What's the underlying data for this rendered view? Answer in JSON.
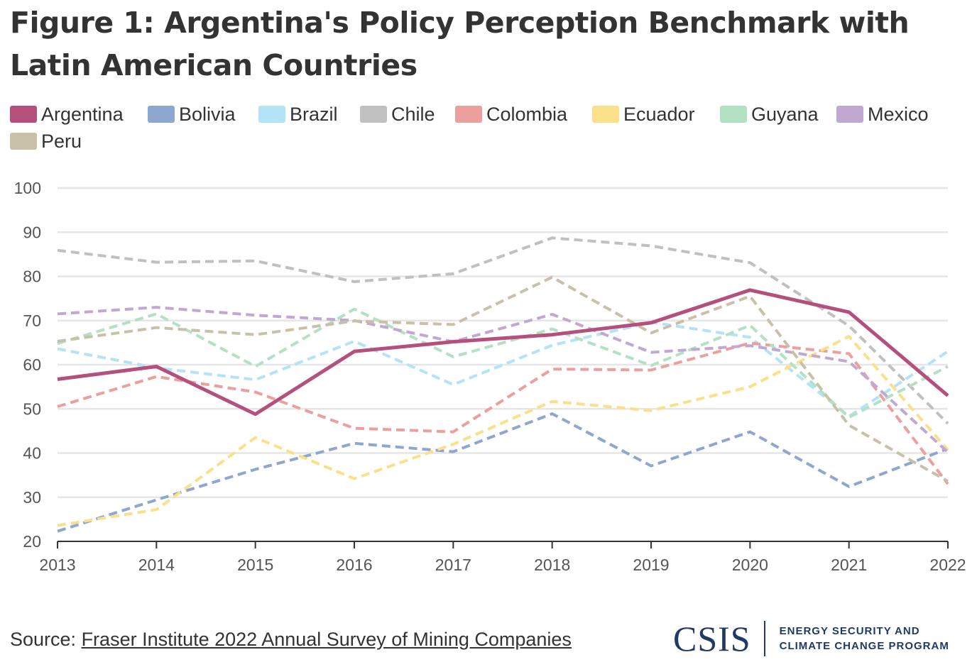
{
  "title": "Figure 1: Argentina's Policy Perception Benchmark with Latin American Countries",
  "source": {
    "label": "Source: ",
    "link_text": "Fraser Institute 2022 Annual Survey of Mining Companies"
  },
  "logo": {
    "mark": "CSIS",
    "line1": "ENERGY SECURITY AND",
    "line2": "CLIMATE CHANGE PROGRAM"
  },
  "chart_data": {
    "type": "line",
    "title": "Figure 1: Argentina's Policy Perception Benchmark with Latin American Countries",
    "xlabel": "",
    "ylabel": "",
    "x": [
      2013,
      2014,
      2015,
      2016,
      2017,
      2018,
      2019,
      2020,
      2021,
      2022
    ],
    "ylim": [
      20,
      100
    ],
    "yticks": [
      20,
      30,
      40,
      50,
      60,
      70,
      80,
      90,
      100
    ],
    "grid": true,
    "legend_position": "top",
    "series": [
      {
        "name": "Argentina",
        "color": "#b5507c",
        "style": "solid",
        "values": [
          56.7,
          59.6,
          48.8,
          63.0,
          65.2,
          66.8,
          69.5,
          76.9,
          71.9,
          53.0
        ]
      },
      {
        "name": "Bolivia",
        "color": "#8ea7d1",
        "style": "dashed",
        "values": [
          22.3,
          29.4,
          36.3,
          42.2,
          40.3,
          48.9,
          37.1,
          44.8,
          32.4,
          41.0
        ]
      },
      {
        "name": "Brazil",
        "color": "#b3e3f7",
        "style": "dashed",
        "values": [
          63.6,
          59.3,
          56.6,
          65.3,
          55.5,
          64.4,
          69.6,
          66.2,
          48.3,
          63.0
        ]
      },
      {
        "name": "Chile",
        "color": "#c0c0c0",
        "style": "dashed",
        "values": [
          85.9,
          83.2,
          83.5,
          78.8,
          80.6,
          88.7,
          86.9,
          83.1,
          68.8,
          46.7
        ]
      },
      {
        "name": "Colombia",
        "color": "#eca09e",
        "style": "dashed",
        "values": [
          50.5,
          57.3,
          53.8,
          45.6,
          44.8,
          59.0,
          58.8,
          64.9,
          62.5,
          33.0
        ]
      },
      {
        "name": "Ecuador",
        "color": "#fbe08a",
        "style": "dashed",
        "values": [
          23.6,
          27.2,
          43.5,
          34.2,
          42.0,
          51.7,
          49.6,
          55.0,
          66.4,
          40.7
        ]
      },
      {
        "name": "Guyana",
        "color": "#b2e1c3",
        "style": "dashed",
        "values": [
          64.8,
          71.5,
          59.6,
          72.6,
          61.8,
          68.1,
          59.8,
          68.9,
          48.1,
          59.6
        ]
      },
      {
        "name": "Mexico",
        "color": "#c1a8d2",
        "style": "dashed",
        "values": [
          71.5,
          73.0,
          71.2,
          70.0,
          65.2,
          71.4,
          62.8,
          64.3,
          60.7,
          40.2
        ]
      },
      {
        "name": "Peru",
        "color": "#c9c0a8",
        "style": "dashed",
        "values": [
          65.3,
          68.4,
          66.8,
          69.9,
          69.1,
          79.8,
          67.2,
          75.5,
          46.3,
          33.6
        ]
      }
    ]
  }
}
